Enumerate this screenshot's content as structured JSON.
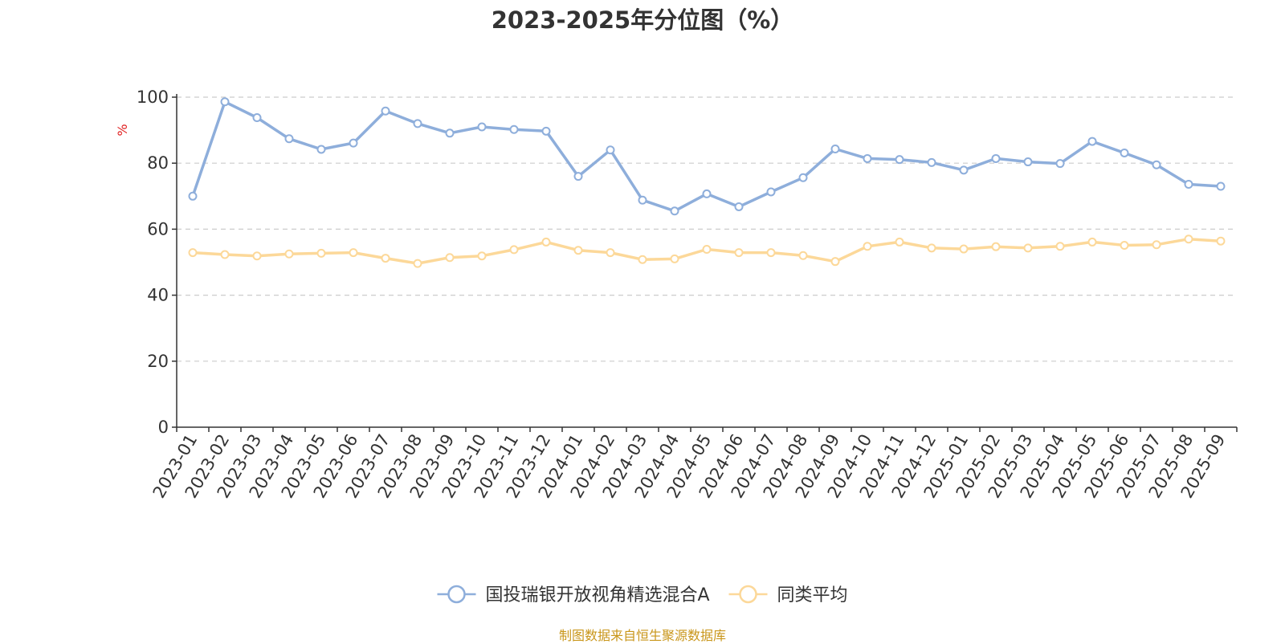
{
  "chart_data": {
    "type": "line",
    "title": "2023-2025年分位图（%）",
    "ylabel": "%",
    "xlabel": "",
    "ylim": [
      0,
      100
    ],
    "yticks": [
      "0",
      "20",
      "40",
      "60",
      "80",
      "100"
    ],
    "grid": true,
    "legend_position": "bottom",
    "categories": [
      "2023-01",
      "2023-02",
      "2023-03",
      "2023-04",
      "2023-05",
      "2023-06",
      "2023-07",
      "2023-08",
      "2023-09",
      "2023-10",
      "2023-11",
      "2023-12",
      "2024-01",
      "2024-02",
      "2024-03",
      "2024-04",
      "2024-05",
      "2024-06",
      "2024-07",
      "2024-08",
      "2024-09",
      "2024-10",
      "2024-11",
      "2024-12",
      "2025-01",
      "2025-02",
      "2025-03",
      "2025-04",
      "2025-05",
      "2025-06",
      "2025-07",
      "2025-08",
      "2025-09"
    ],
    "series": [
      {
        "name": "国投瑞银开放视角精选混合A",
        "color": "#8eaedb",
        "values": [
          70.0,
          98.6,
          93.8,
          87.4,
          84.2,
          86.1,
          95.8,
          92.0,
          89.1,
          91.0,
          90.2,
          89.7,
          76.0,
          84.0,
          68.8,
          65.5,
          70.7,
          66.8,
          71.3,
          75.6,
          84.3,
          81.4,
          81.1,
          80.2,
          77.9,
          81.4,
          80.4,
          79.9,
          86.6,
          83.1,
          79.5,
          73.6,
          73.0
        ]
      },
      {
        "name": "同类平均",
        "color": "#fcd899",
        "values": [
          52.9,
          52.3,
          51.9,
          52.5,
          52.7,
          52.9,
          51.2,
          49.6,
          51.4,
          51.9,
          53.8,
          56.1,
          53.6,
          52.9,
          50.8,
          51.0,
          53.9,
          52.9,
          52.9,
          52.0,
          50.2,
          54.8,
          56.1,
          54.3,
          54.0,
          54.7,
          54.3,
          54.8,
          56.1,
          55.1,
          55.3,
          57.0,
          56.4
        ]
      }
    ],
    "source": "制图数据来自恒生聚源数据库"
  }
}
